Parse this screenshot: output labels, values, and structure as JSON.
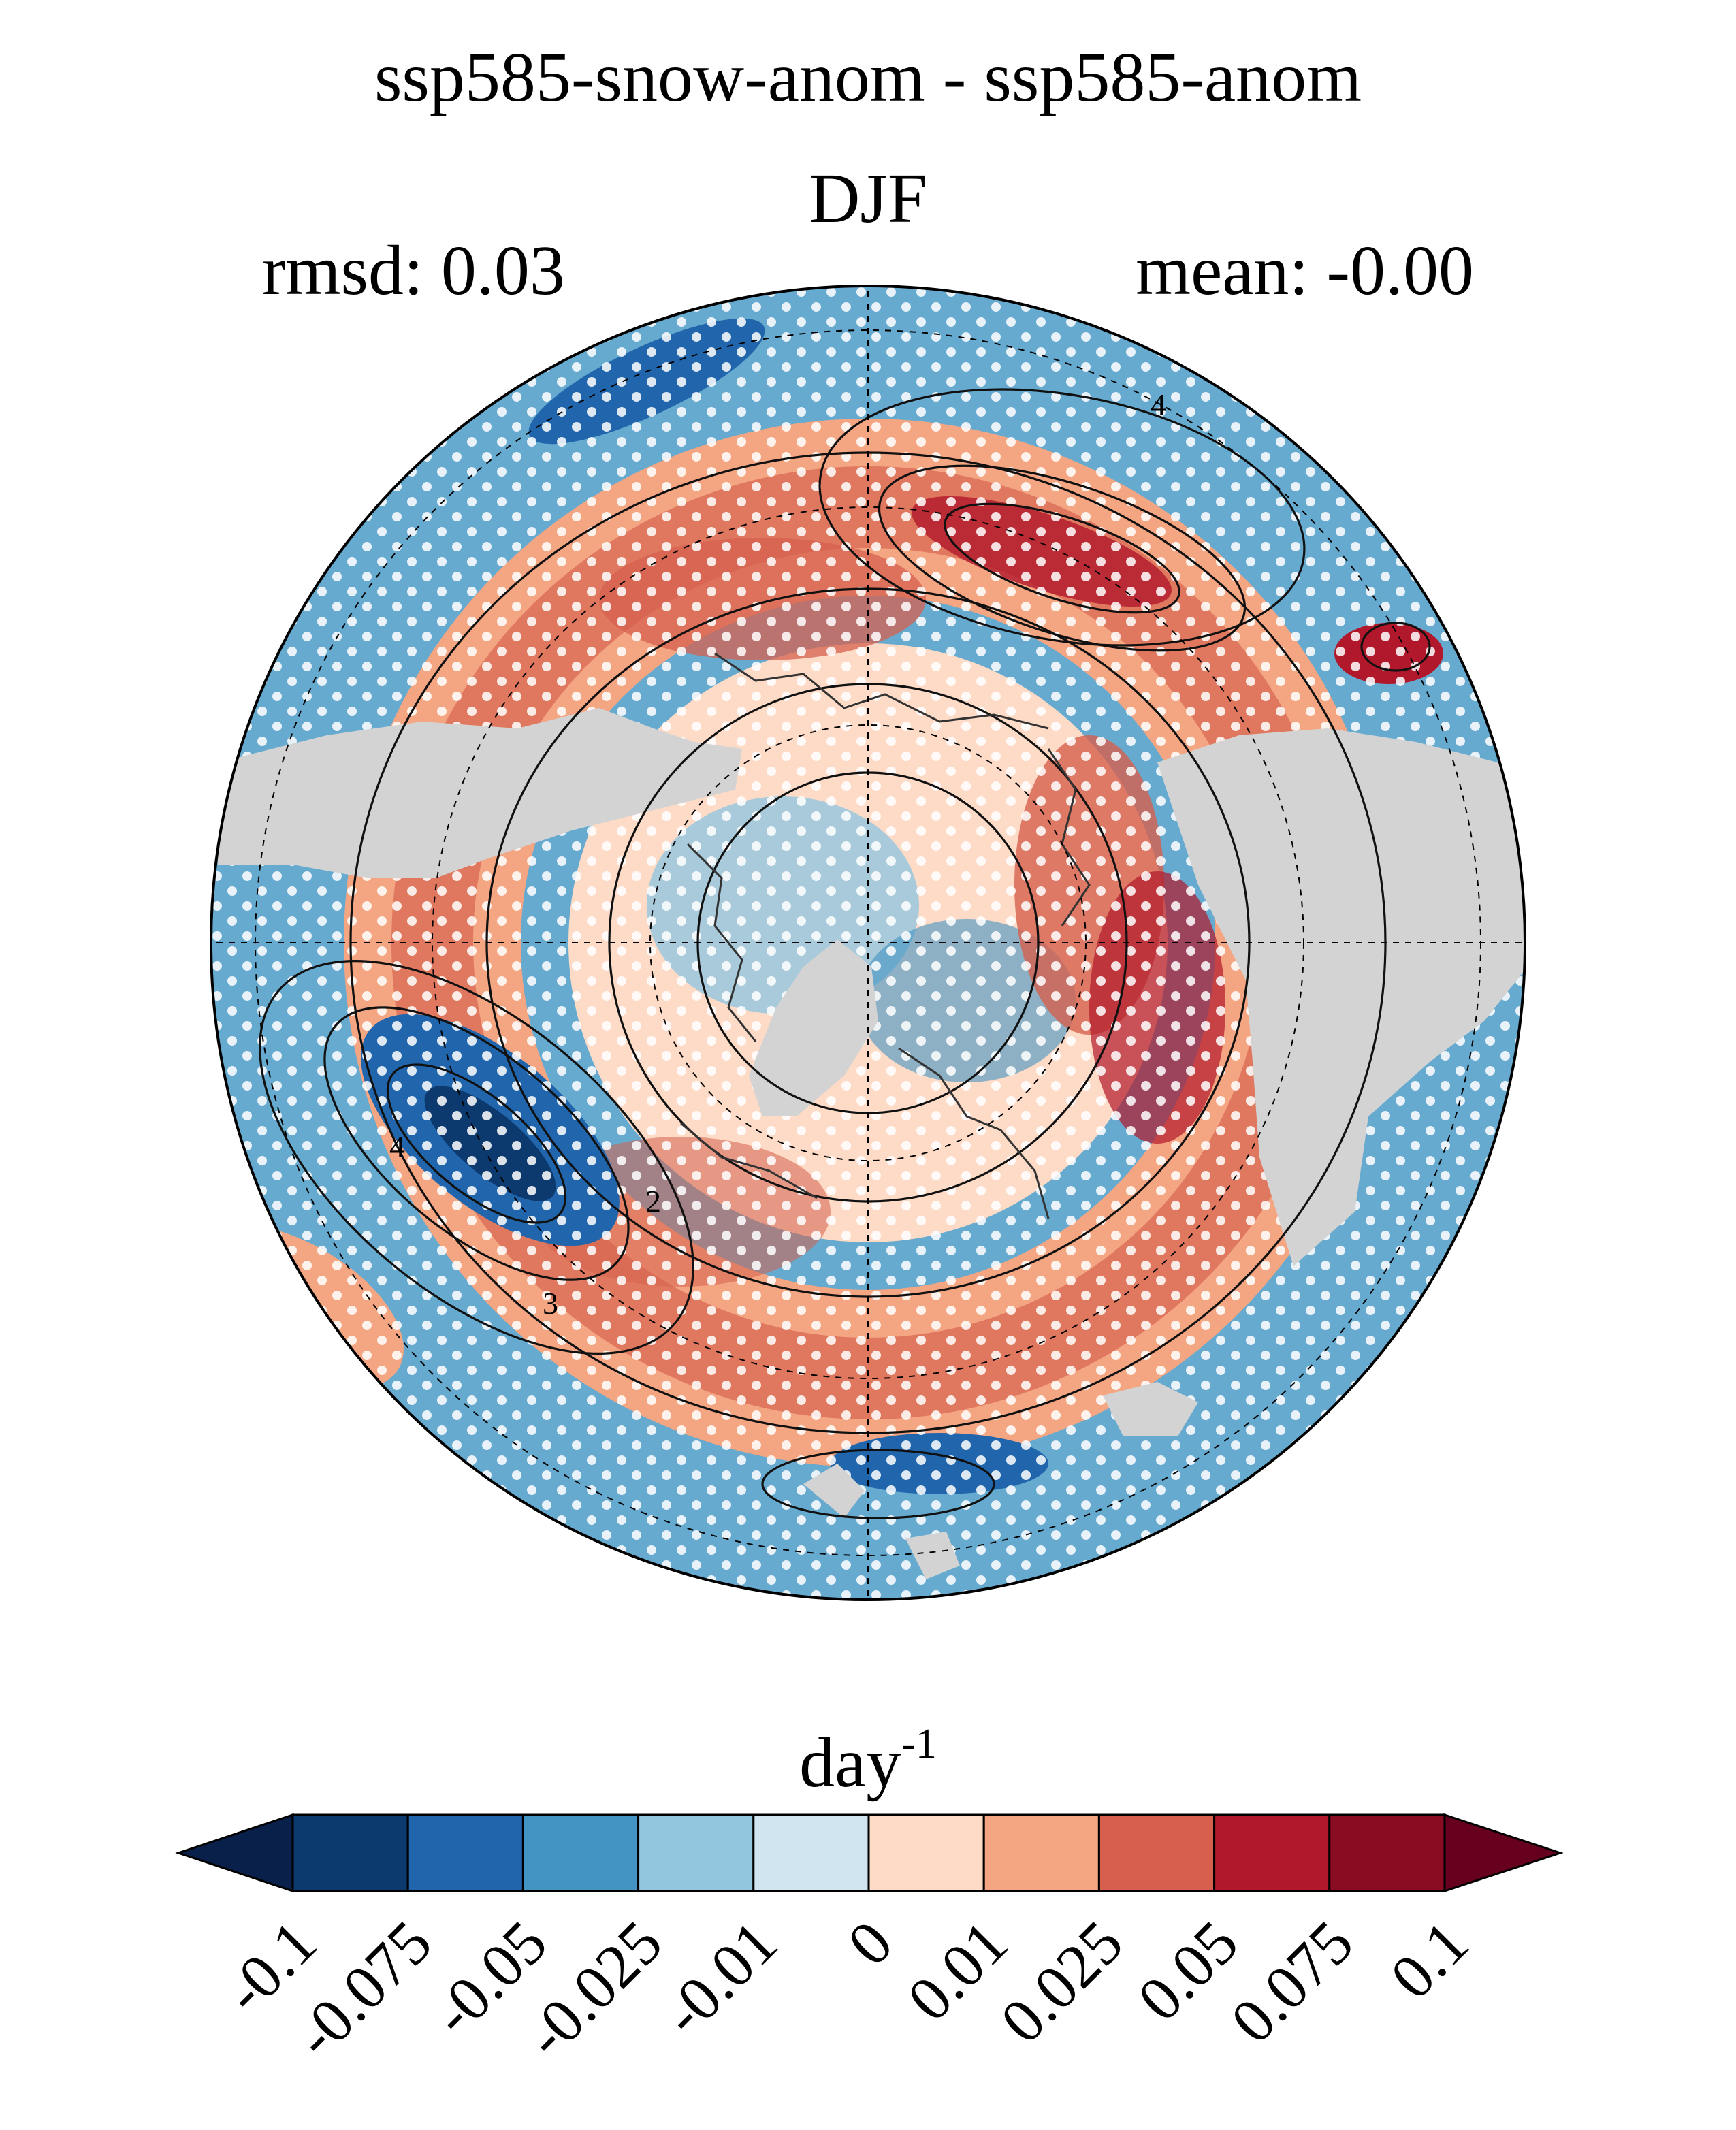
{
  "figure": {
    "title": "ssp585-snow-anom - ssp585-anom",
    "subtitle": "DJF",
    "stat_left": "rmsd: 0.03",
    "stat_right": "mean: -0.00"
  },
  "map": {
    "projection": "north-polar-stereographic",
    "land_mask_color": "#d3d3d3",
    "contour_labels": [
      "4",
      "2",
      "4",
      "3"
    ],
    "stippling": "white dots mark significant areas"
  },
  "colorbar": {
    "units_base": "day",
    "units_exp": "-1",
    "ticks": [
      "-0.1",
      "-0.075",
      "-0.05",
      "-0.025",
      "-0.01",
      "0",
      "0.01",
      "0.025",
      "0.05",
      "0.075",
      "0.1"
    ],
    "colors": [
      "#08204a",
      "#0d3a6e",
      "#2166ac",
      "#4393c3",
      "#92c5de",
      "#d1e5f0",
      "#fddbc7",
      "#f4a582",
      "#d6604d",
      "#b2182b",
      "#8a0c22",
      "#67001f"
    ]
  }
}
